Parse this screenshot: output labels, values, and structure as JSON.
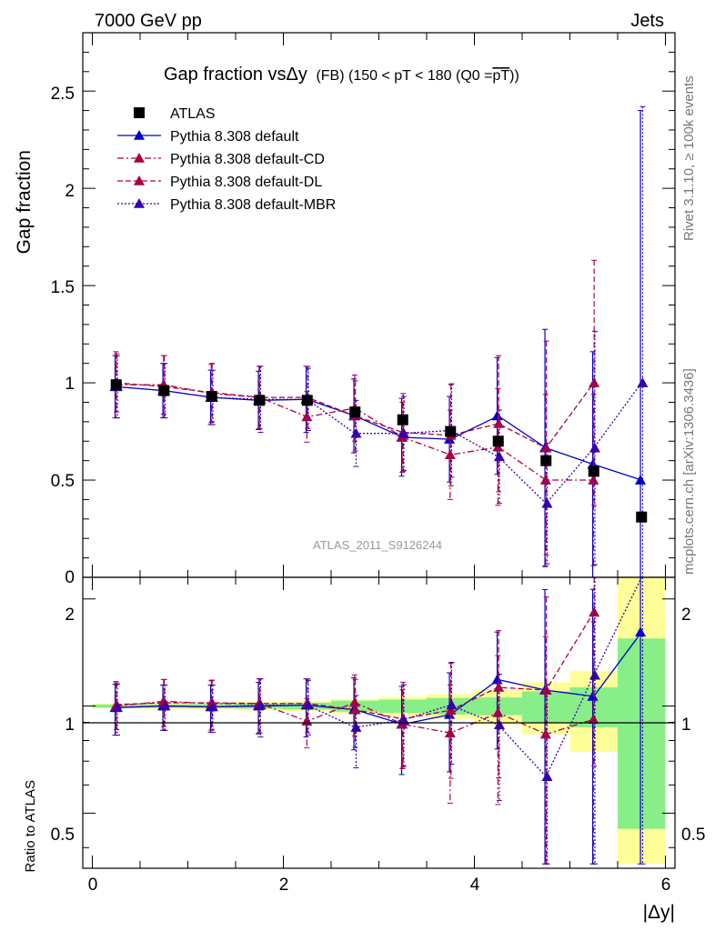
{
  "header": {
    "left": "7000 GeV pp",
    "right": "Jets"
  },
  "side_labels": {
    "rivet": "Rivet 3.1.10, ≥ 100k events",
    "mcplots": "mcplots.cern.ch [arXiv:1306.3436]"
  },
  "chart_data": {
    "type": "scatter",
    "title": "Gap fraction vsΔy (FB) (150 < pT < 180 (Q0 =pT))",
    "title_main": "Gap fraction vsΔy",
    "title_sub": "(FB) (150 < pT < 180 (Q0 =",
    "title_over": "pT",
    "title_end": "))",
    "watermark": "ATLAS_2011_S9126244",
    "xlabel": "|Δy|",
    "ylabel_top": "Gap fraction",
    "ylabel_bottom": "Ratio to ATLAS",
    "xlim": [
      -0.1,
      6.1
    ],
    "ylim_top": [
      0,
      2.8
    ],
    "ylim_bottom": [
      0.35,
      2.3
    ],
    "x_ticks": [
      "0",
      "2",
      "4",
      "6"
    ],
    "y_ticks_top": [
      "0.5",
      "1",
      "1.5",
      "2",
      "2.5"
    ],
    "y_ticks_top_extra": "0",
    "y_ticks_bottom": [
      "0.5",
      "1",
      "2"
    ],
    "legend_placement": "top-left",
    "bin_edges": [
      0,
      0.5,
      1,
      1.5,
      2,
      2.5,
      3,
      3.5,
      4,
      4.5,
      5,
      5.5,
      6
    ],
    "x": [
      0.25,
      0.75,
      1.25,
      1.75,
      2.25,
      2.75,
      3.25,
      3.75,
      4.25,
      4.75,
      5.25,
      5.75
    ],
    "atlas": {
      "name": "ATLAS",
      "values": [
        0.99,
        0.96,
        0.93,
        0.91,
        0.91,
        0.85,
        0.81,
        0.75,
        0.7,
        0.6,
        0.545,
        0.31
      ],
      "band_inner": [
        0.01,
        0.01,
        0.012,
        0.015,
        0.02,
        0.03,
        0.035,
        0.04,
        0.04,
        0.06,
        0.07,
        0.17
      ],
      "band_outer": [
        0.015,
        0.02,
        0.02,
        0.025,
        0.03,
        0.04,
        0.05,
        0.06,
        0.08,
        0.1,
        0.14,
        0.42
      ]
    },
    "series": [
      {
        "name": "Pythia 8.308 default",
        "color": "#0000cc",
        "dash": "",
        "values": [
          0.98,
          0.96,
          0.925,
          0.91,
          0.915,
          0.83,
          0.72,
          0.71,
          0.83,
          0.665,
          0.58,
          0.5
        ],
        "errors": [
          0.16,
          0.14,
          0.14,
          0.15,
          0.17,
          0.19,
          0.2,
          0.22,
          0.3,
          0.61,
          0.58,
          1.9
        ]
      },
      {
        "name": "Pythia 8.308 default-CD",
        "color": "#aa0044",
        "dash": "7,3,2,3",
        "values": [
          0.99,
          0.99,
          0.945,
          0.925,
          0.825,
          0.87,
          0.72,
          0.63,
          0.67,
          0.5,
          0.5,
          null
        ],
        "errors": [
          0.17,
          0.15,
          0.15,
          0.16,
          0.13,
          0.17,
          0.18,
          0.23,
          0.3,
          0.44,
          0.44,
          null
        ]
      },
      {
        "name": "Pythia 8.308 default-DL",
        "color": "#aa0044",
        "dash": "6,3",
        "values": [
          1.0,
          0.98,
          0.95,
          0.925,
          0.925,
          0.83,
          0.745,
          0.73,
          0.79,
          0.665,
          1.0,
          null
        ],
        "errors": [
          0.15,
          0.16,
          0.15,
          0.16,
          0.16,
          0.18,
          0.2,
          0.26,
          0.35,
          0.55,
          0.63,
          null
        ]
      },
      {
        "name": "Pythia 8.308 default-MBR",
        "color": "#3300aa",
        "dash": "2,2",
        "values": [
          0.98,
          0.96,
          0.925,
          0.915,
          0.915,
          0.74,
          0.74,
          0.755,
          0.62,
          0.38,
          0.665,
          1.0
        ],
        "errors": [
          0.16,
          0.14,
          0.14,
          0.17,
          0.16,
          0.17,
          0.19,
          0.24,
          0.24,
          0.31,
          0.6,
          1.42
        ]
      }
    ]
  }
}
